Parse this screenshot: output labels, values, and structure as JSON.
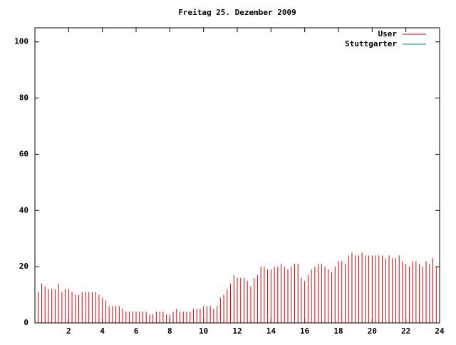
{
  "chart_data": {
    "type": "impulses",
    "title": "Freitag 25. Dezember 2009",
    "x": [
      0,
      0.2,
      0.4,
      0.6,
      0.8,
      1,
      1.2,
      1.4,
      1.6,
      1.8,
      2,
      2.2,
      2.4,
      2.6,
      2.8,
      3,
      3.2,
      3.4,
      3.6,
      3.8,
      4,
      4.2,
      4.4,
      4.6,
      4.8,
      5,
      5.2,
      5.4,
      5.6,
      5.8,
      6,
      6.2,
      6.4,
      6.6,
      6.8,
      7,
      7.2,
      7.4,
      7.6,
      7.8,
      8,
      8.2,
      8.4,
      8.6,
      8.8,
      9,
      9.2,
      9.4,
      9.6,
      9.8,
      10,
      10.2,
      10.4,
      10.6,
      10.8,
      11,
      11.2,
      11.4,
      11.6,
      11.8,
      12,
      12.2,
      12.4,
      12.6,
      12.8,
      13,
      13.2,
      13.4,
      13.6,
      13.8,
      14,
      14.2,
      14.4,
      14.6,
      14.8,
      15,
      15.2,
      15.4,
      15.6,
      15.8,
      16,
      16.2,
      16.4,
      16.6,
      16.8,
      17,
      17.2,
      17.4,
      17.6,
      17.8,
      18,
      18.2,
      18.4,
      18.6,
      18.8,
      19,
      19.2,
      19.4,
      19.6,
      19.8,
      20,
      20.2,
      20.4,
      20.6,
      20.8,
      21,
      21.2,
      21.4,
      21.6,
      21.8,
      22,
      22.2,
      22.4,
      22.6,
      22.8,
      23,
      23.2,
      23.4,
      23.6,
      23.8,
      24
    ],
    "series": [
      {
        "name": "User",
        "color": "#e00000",
        "values": [
          13,
          11,
          14,
          13,
          12,
          12,
          12,
          14,
          11,
          12,
          12,
          11,
          10,
          10,
          11,
          11,
          11,
          11,
          11,
          10,
          9,
          8,
          6,
          6,
          6,
          6,
          5,
          4,
          4,
          4,
          4,
          4,
          4,
          4,
          3,
          3,
          4,
          4,
          4,
          3,
          3,
          4,
          5,
          4,
          4,
          4,
          4,
          5,
          5,
          5,
          6,
          6,
          6,
          5,
          6,
          9,
          10,
          12,
          14,
          17,
          16,
          16,
          16,
          15,
          13,
          16,
          17,
          20,
          20,
          19,
          19,
          20,
          20,
          21,
          20,
          19,
          20,
          21,
          21,
          16,
          15,
          17,
          19,
          20,
          21,
          21,
          20,
          19,
          18,
          20,
          22,
          22,
          21,
          24,
          25,
          24,
          24,
          25,
          24,
          24,
          24,
          24,
          24,
          24,
          23,
          24,
          23,
          23,
          24,
          22,
          21,
          20,
          22,
          22,
          21,
          20,
          22,
          21,
          23,
          20,
          18
        ]
      },
      {
        "name": "Stuttgarter",
        "color": "#008b8b",
        "values": [
          null,
          null,
          null,
          null,
          null,
          null,
          null,
          null,
          null,
          null,
          null,
          null,
          null,
          null,
          null,
          null,
          null,
          null,
          null,
          null,
          null,
          null,
          null,
          null,
          null,
          null,
          null,
          null,
          null,
          null,
          null,
          null,
          null,
          null,
          null,
          null,
          null,
          null,
          null,
          null,
          null,
          null,
          null,
          null,
          null,
          null,
          null,
          null,
          null,
          null,
          null,
          null,
          null,
          null,
          null,
          null,
          null,
          null,
          null,
          null,
          null,
          null,
          null,
          null,
          null,
          null,
          null,
          null,
          null,
          null,
          null,
          null,
          null,
          null,
          null,
          null,
          null,
          null,
          null,
          null,
          null,
          null,
          null,
          null,
          null,
          null,
          null,
          null,
          null,
          null,
          null,
          null,
          null,
          null,
          null,
          null,
          null,
          null,
          null,
          null,
          null,
          null,
          null,
          null,
          null,
          null,
          null,
          null,
          null,
          null,
          null,
          null,
          null,
          null,
          null,
          null,
          null,
          null,
          null,
          null,
          null
        ]
      }
    ],
    "xlim": [
      0,
      24
    ],
    "xticks": [
      2,
      4,
      6,
      8,
      10,
      12,
      14,
      16,
      18,
      20,
      22,
      24
    ],
    "ylim": [
      0,
      105
    ],
    "yticks": [
      0,
      20,
      40,
      60,
      80,
      100
    ],
    "legend": "top-right"
  }
}
